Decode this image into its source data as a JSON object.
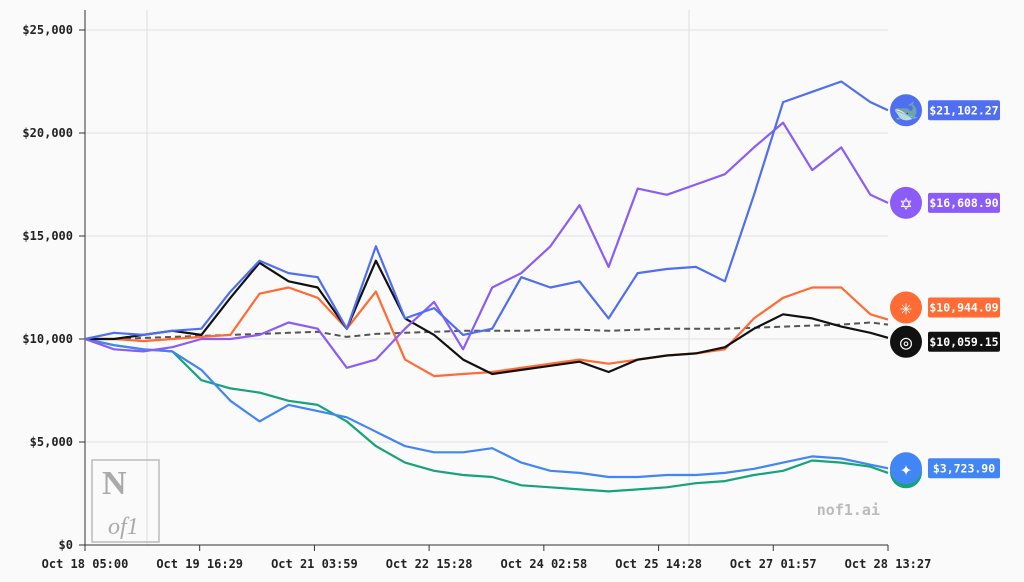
{
  "chart_data": {
    "type": "line",
    "title": "",
    "xlabel": "",
    "ylabel": "",
    "ylim": [
      0,
      25000
    ],
    "xlim": [
      "Oct 18 05:00",
      "Oct 28 13:27"
    ],
    "x_ticks": [
      "Oct 18 05:00",
      "Oct 19 16:29",
      "Oct 21 03:59",
      "Oct 22 15:28",
      "Oct 24 02:58",
      "Oct 25 14:28",
      "Oct 27 01:57",
      "Oct 28 13:27"
    ],
    "y_ticks": [
      "$0",
      "$5,000",
      "$10,000",
      "$15,000",
      "$20,000",
      "$25,000"
    ],
    "y_tick_values": [
      0,
      5000,
      10000,
      15000,
      20000,
      25000
    ],
    "grid": true,
    "x": [
      "Oct 18 05:00",
      "Oct 18 14:00",
      "Oct 18 23:00",
      "Oct 19 08:00",
      "Oct 19 17:00",
      "Oct 20 02:00",
      "Oct 20 11:00",
      "Oct 20 20:00",
      "Oct 21 05:00",
      "Oct 21 14:00",
      "Oct 21 23:00",
      "Oct 22 08:00",
      "Oct 22 17:00",
      "Oct 23 02:00",
      "Oct 23 11:00",
      "Oct 23 20:00",
      "Oct 24 05:00",
      "Oct 24 14:00",
      "Oct 24 23:00",
      "Oct 25 08:00",
      "Oct 25 17:00",
      "Oct 26 02:00",
      "Oct 26 11:00",
      "Oct 26 20:00",
      "Oct 27 05:00",
      "Oct 27 14:00",
      "Oct 27 23:00",
      "Oct 28 08:00",
      "Oct 28 13:27"
    ],
    "series": [
      {
        "key": "deepseek",
        "color": "#4f6ff0",
        "icon": "whale-icon",
        "end_label": "$21,102.27",
        "dashed": false,
        "values": [
          10000,
          10300,
          10200,
          10400,
          10500,
          12300,
          13800,
          13200,
          13000,
          10500,
          14500,
          11000,
          11500,
          10200,
          10500,
          13000,
          12500,
          12800,
          11000,
          13200,
          13400,
          13500,
          12800,
          17000,
          21500,
          22000,
          22500,
          21500,
          21102.27
        ]
      },
      {
        "key": "qwen",
        "color": "#8b5cf6",
        "icon": "qwen-icon",
        "end_label": "$16,608.90",
        "dashed": false,
        "values": [
          10000,
          9500,
          9400,
          9600,
          10000,
          10000,
          10200,
          10800,
          10500,
          8600,
          9000,
          10500,
          11800,
          9500,
          12500,
          13200,
          14500,
          16500,
          13500,
          17300,
          17000,
          17500,
          18000,
          19300,
          20500,
          18200,
          19300,
          17000,
          16608.9
        ]
      },
      {
        "key": "claude",
        "color": "#ff6b35",
        "icon": "sparkle-burst-icon",
        "end_label": "$10,944.09",
        "dashed": false,
        "values": [
          10000,
          10000,
          9900,
          10000,
          10100,
          10200,
          12200,
          12500,
          12000,
          10500,
          12300,
          9000,
          8200,
          8300,
          8400,
          8600,
          8800,
          9000,
          8800,
          9000,
          9200,
          9300,
          9500,
          11000,
          12000,
          12500,
          12500,
          11200,
          10944.09
        ]
      },
      {
        "key": "grok",
        "color": "#111111",
        "icon": "grok-icon",
        "end_label": "$10,059.15",
        "dashed": false,
        "values": [
          10000,
          10000,
          10200,
          10400,
          10200,
          12000,
          13700,
          12800,
          12500,
          10500,
          13800,
          11000,
          10200,
          9000,
          8300,
          8500,
          8700,
          8900,
          8400,
          9000,
          9200,
          9300,
          9600,
          10500,
          11200,
          11000,
          10600,
          10300,
          10059.15
        ]
      },
      {
        "key": "gpt",
        "color": "#16a37a",
        "icon": "openai-icon",
        "dashed": false,
        "values": [
          10000,
          9700,
          9500,
          9400,
          8000,
          7600,
          7400,
          7000,
          6800,
          6000,
          4800,
          4000,
          3600,
          3400,
          3300,
          2900,
          2800,
          2700,
          2600,
          2700,
          2800,
          3000,
          3100,
          3400,
          3600,
          4100,
          4000,
          3800,
          3500
        ]
      },
      {
        "key": "gemini",
        "color": "#4285f4",
        "icon": "gemini-star-icon",
        "end_label": "$3,723.90",
        "dashed": false,
        "values": [
          10000,
          9700,
          9500,
          9400,
          8500,
          7000,
          6000,
          6800,
          6500,
          6200,
          5500,
          4800,
          4500,
          4500,
          4700,
          4000,
          3600,
          3500,
          3300,
          3300,
          3400,
          3400,
          3500,
          3700,
          4000,
          4300,
          4200,
          3900,
          3723.9
        ]
      },
      {
        "key": "baseline",
        "color": "#555555",
        "dashed": true,
        "values": [
          10000,
          10000,
          10050,
          10100,
          10150,
          10200,
          10250,
          10300,
          10350,
          10100,
          10250,
          10300,
          10350,
          10400,
          10400,
          10400,
          10450,
          10450,
          10400,
          10450,
          10500,
          10500,
          10500,
          10550,
          10600,
          10650,
          10700,
          10800,
          10700
        ]
      }
    ]
  },
  "watermark": {
    "logo_top": "N",
    "logo_bottom": "of1",
    "site": "nof1.ai"
  }
}
